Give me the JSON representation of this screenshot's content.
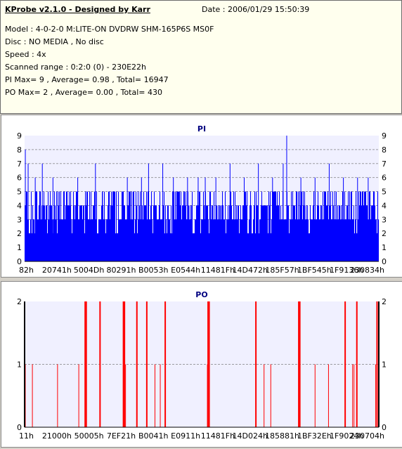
{
  "header": {
    "title": "KProbe v2.1.0 - Designed by Karr",
    "date": "Date : 2006/01/29 15:50:39",
    "lines": [
      "Model : 4-0-2-0 M:LITE-ON DVDRW SHM-165P6S MS0F",
      "Disc : NO MEDIA , No disc",
      "Speed : 4x",
      "Scanned range : 0:2:0 (0) - 230E22h",
      "PI Max= 9 , Average= 0.98 , Total= 16947",
      "PO Max= 2 , Average= 0.00 , Total= 430"
    ]
  },
  "colors": {
    "pi_bar": "#0000ff",
    "po_bar": "#ff0000",
    "plot_bg": "#f0f0ff",
    "grid": "#9a9aa0",
    "title": "#000080"
  },
  "chart_data": [
    {
      "type": "bar",
      "title": "PI",
      "ylim": [
        0,
        9
      ],
      "yticks": [
        0,
        1,
        2,
        3,
        4,
        5,
        6,
        7,
        8,
        9
      ],
      "xticks": [
        "82h",
        "20741h",
        "5004Dh",
        "80291h",
        "B0053h",
        "E0544h",
        "11481Fh",
        "14D472h",
        "185F57h",
        "1BF545h",
        "1F9136h",
        "230834h"
      ],
      "x_range": [
        "0h",
        "230E22h"
      ],
      "baseline_band": [
        2,
        5
      ],
      "peaks": [
        {
          "x": 0.002,
          "y": 8
        },
        {
          "x": 0.01,
          "y": 7
        },
        {
          "x": 0.03,
          "y": 6
        },
        {
          "x": 0.05,
          "y": 7
        },
        {
          "x": 0.08,
          "y": 6
        },
        {
          "x": 0.11,
          "y": 5
        },
        {
          "x": 0.15,
          "y": 6
        },
        {
          "x": 0.2,
          "y": 7
        },
        {
          "x": 0.22,
          "y": 5
        },
        {
          "x": 0.29,
          "y": 6
        },
        {
          "x": 0.33,
          "y": 6
        },
        {
          "x": 0.35,
          "y": 7
        },
        {
          "x": 0.39,
          "y": 7
        },
        {
          "x": 0.42,
          "y": 6
        },
        {
          "x": 0.46,
          "y": 6
        },
        {
          "x": 0.49,
          "y": 6
        },
        {
          "x": 0.51,
          "y": 6
        },
        {
          "x": 0.54,
          "y": 6
        },
        {
          "x": 0.58,
          "y": 7
        },
        {
          "x": 0.62,
          "y": 6
        },
        {
          "x": 0.66,
          "y": 7
        },
        {
          "x": 0.7,
          "y": 6
        },
        {
          "x": 0.73,
          "y": 7
        },
        {
          "x": 0.74,
          "y": 9
        },
        {
          "x": 0.78,
          "y": 6
        },
        {
          "x": 0.82,
          "y": 6
        },
        {
          "x": 0.86,
          "y": 7
        },
        {
          "x": 0.9,
          "y": 6
        },
        {
          "x": 0.94,
          "y": 6
        },
        {
          "x": 0.97,
          "y": 6
        }
      ]
    },
    {
      "type": "bar",
      "title": "PO",
      "ylim": [
        0,
        2
      ],
      "yticks": [
        0,
        1,
        2
      ],
      "xticks": [
        "11h",
        "21000h",
        "50005h",
        "7EF21h",
        "B0041h",
        "E0911h",
        "11481Fh",
        "14D024h",
        "185881h",
        "1BF32Eh",
        "1F9024h",
        "230704h"
      ],
      "x_range": [
        "0h",
        "230E22h"
      ],
      "points": [
        {
          "x": 0.0,
          "y": 2
        },
        {
          "x": 0.002,
          "y": 1
        },
        {
          "x": 0.022,
          "y": 1
        },
        {
          "x": 0.093,
          "y": 1
        },
        {
          "x": 0.153,
          "y": 1
        },
        {
          "x": 0.171,
          "y": 2
        },
        {
          "x": 0.174,
          "y": 2
        },
        {
          "x": 0.213,
          "y": 2
        },
        {
          "x": 0.279,
          "y": 2
        },
        {
          "x": 0.282,
          "y": 2
        },
        {
          "x": 0.285,
          "y": 1
        },
        {
          "x": 0.317,
          "y": 2
        },
        {
          "x": 0.345,
          "y": 2
        },
        {
          "x": 0.368,
          "y": 1
        },
        {
          "x": 0.383,
          "y": 1
        },
        {
          "x": 0.397,
          "y": 2
        },
        {
          "x": 0.516,
          "y": 1
        },
        {
          "x": 0.518,
          "y": 2
        },
        {
          "x": 0.521,
          "y": 2
        },
        {
          "x": 0.653,
          "y": 2
        },
        {
          "x": 0.676,
          "y": 1
        },
        {
          "x": 0.695,
          "y": 1
        },
        {
          "x": 0.774,
          "y": 2
        },
        {
          "x": 0.777,
          "y": 2
        },
        {
          "x": 0.82,
          "y": 1
        },
        {
          "x": 0.858,
          "y": 1
        },
        {
          "x": 0.905,
          "y": 2
        },
        {
          "x": 0.926,
          "y": 1
        },
        {
          "x": 0.93,
          "y": 1
        },
        {
          "x": 0.938,
          "y": 2
        },
        {
          "x": 0.991,
          "y": 1
        },
        {
          "x": 0.995,
          "y": 2
        }
      ]
    }
  ]
}
